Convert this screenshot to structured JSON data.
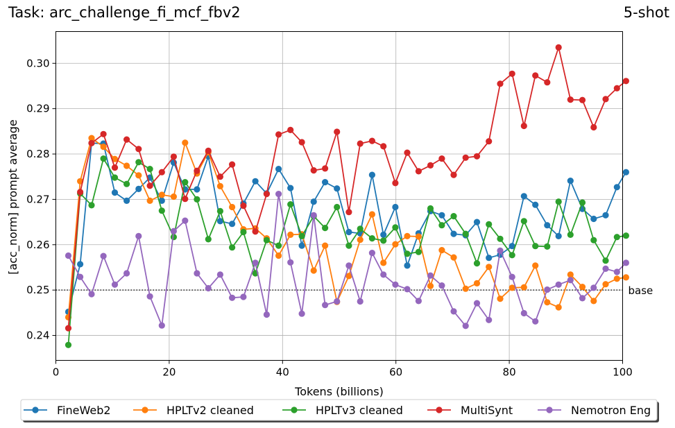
{
  "chart_data": {
    "type": "line",
    "title": "Task: arc_challenge_fi_mcf_fbv2",
    "subtitle": "5-shot",
    "xlabel": "Tokens (billions)",
    "ylabel": "[acc_norm] prompt average",
    "xlim": [
      0,
      100
    ],
    "ylim": [
      0.2345,
      0.307
    ],
    "xticks": [
      0,
      20,
      40,
      60,
      80,
      100
    ],
    "yticks": [
      0.24,
      0.25,
      0.26,
      0.27,
      0.28,
      0.29,
      0.3
    ],
    "ytick_labels": [
      "0.24",
      "0.25",
      "0.26",
      "0.27",
      "0.28",
      "0.29",
      "0.30"
    ],
    "grid": true,
    "baseline": {
      "value": 0.25,
      "label": "base"
    },
    "legend": "bottom-center",
    "x": [
      2.2,
      4.3,
      6.3,
      8.4,
      10.4,
      12.5,
      14.6,
      16.6,
      18.7,
      20.8,
      22.8,
      24.9,
      26.9,
      29.0,
      31.1,
      33.1,
      35.2,
      37.2,
      39.3,
      41.4,
      43.4,
      45.5,
      47.5,
      49.6,
      51.7,
      53.7,
      55.8,
      57.8,
      59.9,
      62.0,
      64.0,
      66.1,
      68.1,
      70.2,
      72.3,
      74.3,
      76.4,
      78.4,
      80.5,
      82.6,
      84.6,
      86.7,
      88.7,
      90.8,
      92.9,
      94.9,
      97.0,
      99.0,
      100.6
    ],
    "series": [
      {
        "name": "FineWeb2",
        "color": "#1f77b4",
        "values": [
          0.2452,
          0.2557,
          0.2824,
          0.2823,
          0.2715,
          0.2697,
          0.2723,
          0.2748,
          0.2697,
          0.2781,
          0.2722,
          0.2722,
          0.2795,
          0.2652,
          0.2646,
          0.2691,
          0.274,
          0.2713,
          0.2767,
          0.2725,
          0.2598,
          0.2695,
          0.2738,
          0.2724,
          0.2628,
          0.2625,
          0.2754,
          0.2622,
          0.2683,
          0.2554,
          0.2625,
          0.2674,
          0.2665,
          0.2624,
          0.2621,
          0.265,
          0.2571,
          0.2578,
          0.2597,
          0.2707,
          0.2688,
          0.2643,
          0.2619,
          0.2741,
          0.2679,
          0.2657,
          0.2665,
          0.2727,
          0.276
        ]
      },
      {
        "name": "HPLTv2 cleaned",
        "color": "#ff7f0e",
        "values": [
          0.244,
          0.274,
          0.2835,
          0.2816,
          0.2789,
          0.2774,
          0.2753,
          0.2697,
          0.271,
          0.2706,
          0.2825,
          0.2757,
          0.2804,
          0.2729,
          0.2683,
          0.2634,
          0.2636,
          0.2614,
          0.2576,
          0.2622,
          0.2623,
          0.2543,
          0.2598,
          0.2474,
          0.2531,
          0.2611,
          0.2667,
          0.256,
          0.2601,
          0.2619,
          0.2618,
          0.2509,
          0.2588,
          0.2572,
          0.2503,
          0.2515,
          0.2551,
          0.2481,
          0.2505,
          0.2506,
          0.2554,
          0.2473,
          0.2462,
          0.2534,
          0.2507,
          0.2476,
          0.2513,
          0.2525,
          0.2528
        ]
      },
      {
        "name": "HPLTv3 cleaned",
        "color": "#2ca02c",
        "values": [
          0.2379,
          0.2713,
          0.2687,
          0.279,
          0.2748,
          0.2734,
          0.2782,
          0.2767,
          0.2675,
          0.2617,
          0.2738,
          0.27,
          0.2612,
          0.2674,
          0.2594,
          0.2628,
          0.2537,
          0.261,
          0.2598,
          0.2689,
          0.2619,
          0.2663,
          0.2637,
          0.2683,
          0.2598,
          0.2635,
          0.2614,
          0.2609,
          0.2638,
          0.258,
          0.2584,
          0.268,
          0.2643,
          0.2663,
          0.2624,
          0.2559,
          0.2645,
          0.2613,
          0.2577,
          0.2652,
          0.2597,
          0.2596,
          0.2695,
          0.2622,
          0.2693,
          0.261,
          0.2565,
          0.2617,
          0.262
        ]
      },
      {
        "name": "MultiSynt",
        "color": "#d62728",
        "values": [
          0.2416,
          0.2716,
          0.2824,
          0.2844,
          0.277,
          0.2832,
          0.2811,
          0.273,
          0.276,
          0.2794,
          0.2701,
          0.2763,
          0.2807,
          0.275,
          0.2777,
          0.2686,
          0.2629,
          0.2712,
          0.2843,
          0.2853,
          0.2826,
          0.2764,
          0.2768,
          0.2849,
          0.2672,
          0.2823,
          0.2829,
          0.2817,
          0.2736,
          0.2803,
          0.2762,
          0.2775,
          0.279,
          0.2754,
          0.2792,
          0.2795,
          0.2828,
          0.2955,
          0.2977,
          0.2862,
          0.2973,
          0.2958,
          0.3035,
          0.292,
          0.2919,
          0.2859,
          0.2921,
          0.2945,
          0.2961
        ]
      },
      {
        "name": "Nemotron Eng",
        "color": "#9467bd",
        "values": [
          0.2576,
          0.2529,
          0.2491,
          0.2575,
          0.2512,
          0.2537,
          0.2619,
          0.2486,
          0.2422,
          0.263,
          0.2653,
          0.2537,
          0.2504,
          0.2534,
          0.2483,
          0.2485,
          0.256,
          0.2446,
          0.2712,
          0.2561,
          0.2448,
          0.2665,
          0.2467,
          0.2475,
          0.2554,
          0.2475,
          0.2582,
          0.2534,
          0.2512,
          0.2502,
          0.2476,
          0.2532,
          0.251,
          0.2453,
          0.2421,
          0.2471,
          0.2434,
          0.2587,
          0.2529,
          0.2449,
          0.2431,
          0.2501,
          0.2512,
          0.2522,
          0.2482,
          0.2505,
          0.2547,
          0.254,
          0.256
        ]
      }
    ]
  }
}
